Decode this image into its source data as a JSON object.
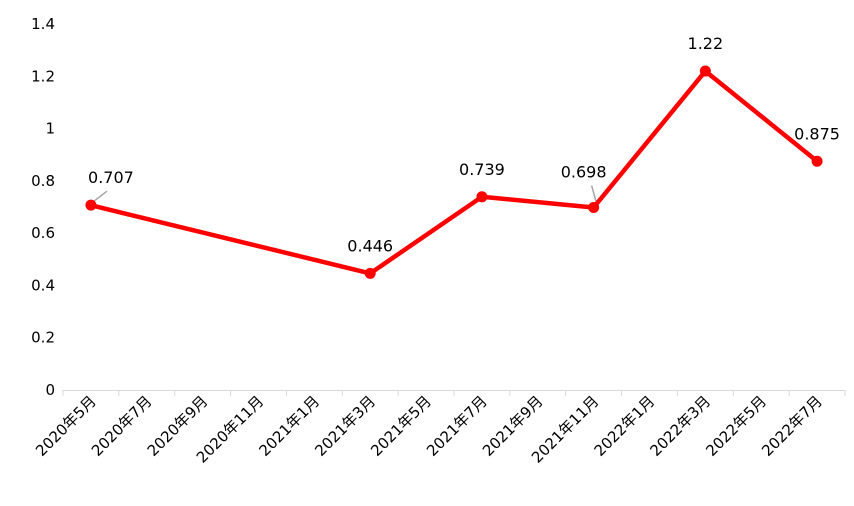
{
  "chart_data": {
    "type": "line",
    "categories": [
      "2020年5月",
      "2020年7月",
      "2020年9月",
      "2020年11月",
      "2021年1月",
      "2021年3月",
      "2021年5月",
      "2021年7月",
      "2021年9月",
      "2021年11月",
      "2022年1月",
      "2022年3月",
      "2022年5月",
      "2022年7月"
    ],
    "series": [
      {
        "color": "#ff0000",
        "points": [
          {
            "x": "2020年5月",
            "y": 0.707,
            "label": "0.707"
          },
          {
            "x": "2021年3月",
            "y": 0.446,
            "label": "0.446"
          },
          {
            "x": "2021年7月",
            "y": 0.739,
            "label": "0.739"
          },
          {
            "x": "2021年11月",
            "y": 0.698,
            "label": "0.698"
          },
          {
            "x": "2022年3月",
            "y": 1.22,
            "label": "1.22"
          },
          {
            "x": "2022年7月",
            "y": 0.875,
            "label": "0.875"
          }
        ]
      }
    ],
    "y_ticks": [
      "0",
      "0.2",
      "0.4",
      "0.6",
      "0.8",
      "1",
      "1.2",
      "1.4"
    ],
    "ylim": [
      0,
      1.4
    ],
    "title": "",
    "xlabel": "",
    "ylabel": "",
    "grid": false,
    "legend": "none"
  }
}
